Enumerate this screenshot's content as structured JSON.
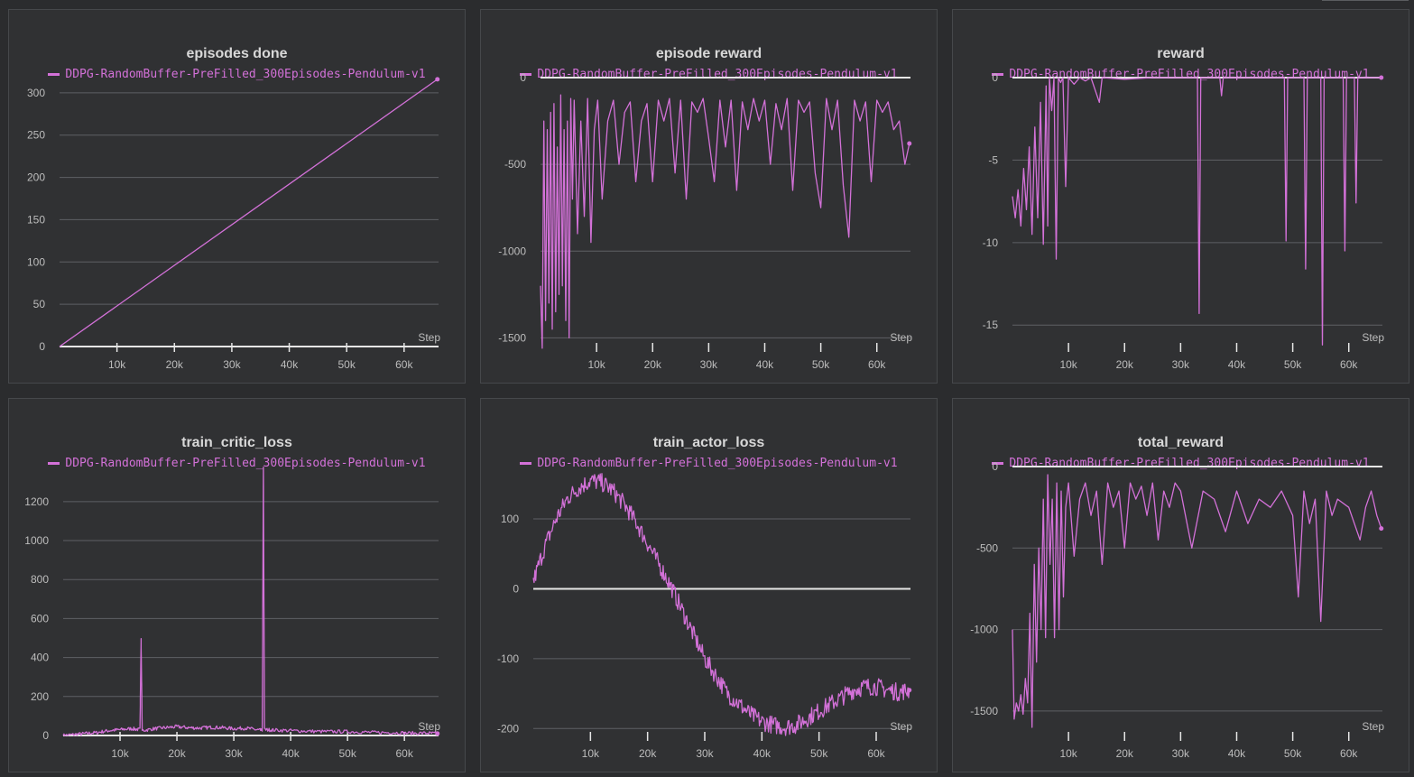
{
  "colors": {
    "background": "#2b2c2e",
    "panel": "#303133",
    "grid": "#5e6064",
    "axis": "#e6e6e6",
    "tick_text": "#bdbdbd",
    "series": "#d371d8"
  },
  "chart_data": [
    {
      "type": "line",
      "title": "episodes done",
      "legend": "DDPG-RandomBuffer-PreFilled_300Episodes-Pendulum-v1",
      "xlabel": "Step",
      "xlim": [
        0,
        66000
      ],
      "ylim": [
        0,
        318
      ],
      "x_ticks": [
        10000,
        20000,
        30000,
        40000,
        50000,
        60000
      ],
      "x_tick_labels": [
        "10k",
        "20k",
        "30k",
        "40k",
        "50k",
        "60k"
      ],
      "y_ticks": [
        0,
        50,
        100,
        150,
        200,
        250,
        300
      ],
      "y_tick_labels": [
        "0",
        "50",
        "100",
        "150",
        "200",
        "250",
        "300"
      ],
      "baseline": 0,
      "series": [
        {
          "name": "DDPG-RandomBuffer-PreFilled_300Episodes-Pendulum-v1",
          "x": [
            0,
            65800
          ],
          "y": [
            0,
            316
          ]
        }
      ]
    },
    {
      "type": "line",
      "title": "episode reward",
      "legend": "DDPG-RandomBuffer-PreFilled_300Episodes-Pendulum-v1",
      "xlabel": "Step",
      "xlim": [
        0,
        66000
      ],
      "ylim": [
        -1550,
        0
      ],
      "x_ticks": [
        10000,
        20000,
        30000,
        40000,
        50000,
        60000
      ],
      "x_tick_labels": [
        "10k",
        "20k",
        "30k",
        "40k",
        "50k",
        "60k"
      ],
      "y_ticks": [
        0,
        -500,
        -1000,
        -1500
      ],
      "y_tick_labels": [
        "0",
        "-500",
        "-1000",
        "-1500"
      ],
      "baseline": 0,
      "series": [
        {
          "name": "DDPG-RandomBuffer-PreFilled_300Episodes-Pendulum-v1",
          "x": [
            0,
            300,
            600,
            900,
            1200,
            1500,
            1800,
            2100,
            2400,
            2700,
            3000,
            3300,
            3600,
            3900,
            4200,
            4500,
            4800,
            5100,
            5400,
            5700,
            6000,
            6600,
            7200,
            7800,
            8400,
            9000,
            9600,
            10200,
            11000,
            12000,
            13000,
            14000,
            15000,
            16000,
            17000,
            18000,
            19000,
            20000,
            21000,
            22000,
            23000,
            24000,
            25000,
            26000,
            27000,
            28000,
            29000,
            30000,
            31000,
            32000,
            33000,
            34000,
            35000,
            36000,
            37000,
            38000,
            39000,
            40000,
            41000,
            42000,
            43000,
            44000,
            45000,
            46000,
            47000,
            48000,
            49000,
            50000,
            51000,
            52000,
            53000,
            54000,
            55000,
            56000,
            57000,
            58000,
            59000,
            60000,
            61000,
            62000,
            63000,
            64000,
            65000,
            65800
          ],
          "y": [
            -1200,
            -1560,
            -250,
            -1400,
            -300,
            -1300,
            -200,
            -1450,
            -150,
            -1350,
            -400,
            -1250,
            -100,
            -1200,
            -300,
            -1400,
            -250,
            -1500,
            -120,
            -700,
            -130,
            -900,
            -250,
            -800,
            -120,
            -950,
            -300,
            -130,
            -700,
            -250,
            -130,
            -500,
            -200,
            -140,
            -600,
            -250,
            -150,
            -600,
            -130,
            -250,
            -120,
            -550,
            -130,
            -700,
            -140,
            -200,
            -120,
            -350,
            -600,
            -130,
            -400,
            -130,
            -650,
            -140,
            -300,
            -120,
            -250,
            -130,
            -500,
            -150,
            -300,
            -120,
            -650,
            -130,
            -200,
            -140,
            -550,
            -750,
            -120,
            -300,
            -130,
            -620,
            -920,
            -130,
            -250,
            -140,
            -600,
            -130,
            -200,
            -140,
            -300,
            -250,
            -500,
            -380
          ]
        }
      ]
    },
    {
      "type": "line",
      "title": "reward",
      "legend": "DDPG-RandomBuffer-PreFilled_300Episodes-Pendulum-v1",
      "xlabel": "Step",
      "xlim": [
        0,
        66000
      ],
      "ylim": [
        -16.3,
        0
      ],
      "x_ticks": [
        10000,
        20000,
        30000,
        40000,
        50000,
        60000
      ],
      "x_tick_labels": [
        "10k",
        "20k",
        "30k",
        "40k",
        "50k",
        "60k"
      ],
      "y_ticks": [
        0,
        -5,
        -10,
        -15
      ],
      "y_tick_labels": [
        "0",
        "-5",
        "-10",
        "-15"
      ],
      "baseline": 0,
      "series": [
        {
          "name": "DDPG-RandomBuffer-PreFilled_300Episodes-Pendulum-v1",
          "x": [
            0,
            500,
            1000,
            1500,
            2000,
            2500,
            3000,
            3500,
            4000,
            4500,
            5000,
            5500,
            6000,
            6300,
            6600,
            7000,
            7400,
            7800,
            8200,
            8600,
            9000,
            9500,
            10000,
            11000,
            12000,
            13000,
            14000,
            15500,
            16000,
            20000,
            25000,
            33000,
            33300,
            33600,
            37000,
            37300,
            37600,
            48500,
            48800,
            49100,
            52000,
            52300,
            52600,
            55000,
            55300,
            55600,
            59000,
            59300,
            59600,
            61000,
            61300,
            61600,
            65800
          ],
          "y": [
            -7.2,
            -8.5,
            -6.8,
            -9.0,
            -5.5,
            -8.0,
            -4.2,
            -9.5,
            -3.0,
            -8.5,
            -1.5,
            -10.1,
            -0.5,
            -9.0,
            0,
            -2.0,
            0,
            -11.0,
            0,
            -0.3,
            0,
            -6.6,
            0,
            -0.4,
            0,
            -0.2,
            0,
            -1.5,
            0,
            -0.1,
            0,
            0,
            -14.3,
            0,
            0,
            -1.1,
            0,
            0,
            -9.9,
            0,
            0,
            -11.6,
            0,
            0,
            -16.2,
            0,
            0,
            -10.5,
            0,
            0,
            -7.6,
            0,
            0
          ]
        }
      ]
    },
    {
      "type": "line",
      "title": "train_critic_loss",
      "legend": "DDPG-RandomBuffer-PreFilled_300Episodes-Pendulum-v1",
      "xlabel": "Step",
      "xlim": [
        0,
        66000
      ],
      "ylim": [
        0,
        1380
      ],
      "x_ticks": [
        10000,
        20000,
        30000,
        40000,
        50000,
        60000
      ],
      "x_tick_labels": [
        "10k",
        "20k",
        "30k",
        "40k",
        "50k",
        "60k"
      ],
      "y_ticks": [
        0,
        200,
        400,
        600,
        800,
        1000,
        1200
      ],
      "y_tick_labels": [
        "0",
        "200",
        "400",
        "600",
        "800",
        "1000",
        "1200"
      ],
      "baseline": 0,
      "series": [
        {
          "name": "DDPG-RandomBuffer-PreFilled_300Episodes-Pendulum-v1",
          "x": [
            0,
            2000,
            4000,
            6000,
            8000,
            10000,
            12000,
            13500,
            13700,
            13900,
            16000,
            18000,
            20000,
            22000,
            24000,
            26000,
            28000,
            30000,
            32000,
            34000,
            35000,
            35200,
            35400,
            37000,
            40000,
            43000,
            46000,
            49000,
            52000,
            55000,
            58000,
            61000,
            64000,
            65800
          ],
          "y": [
            0,
            5,
            10,
            15,
            25,
            30,
            35,
            30,
            490,
            25,
            35,
            40,
            45,
            40,
            38,
            42,
            40,
            35,
            38,
            30,
            25,
            1375,
            30,
            28,
            25,
            22,
            20,
            20,
            18,
            15,
            15,
            12,
            12,
            10
          ]
        }
      ]
    },
    {
      "type": "line",
      "title": "train_actor_loss",
      "legend": "DDPG-RandomBuffer-PreFilled_300Episodes-Pendulum-v1",
      "xlabel": "Step",
      "xlim": [
        0,
        66000
      ],
      "ylim": [
        -210,
        175
      ],
      "x_ticks": [
        10000,
        20000,
        30000,
        40000,
        50000,
        60000
      ],
      "x_tick_labels": [
        "10k",
        "20k",
        "30k",
        "40k",
        "50k",
        "60k"
      ],
      "y_ticks": [
        100,
        0,
        -100,
        -200
      ],
      "y_tick_labels": [
        "100",
        "0",
        "-100",
        "-200"
      ],
      "baseline": 0,
      "series": [
        {
          "name": "DDPG-RandomBuffer-PreFilled_300Episodes-Pendulum-v1",
          "x": [
            0,
            2000,
            4000,
            6000,
            8000,
            10000,
            12000,
            14000,
            16000,
            18000,
            20000,
            22000,
            24000,
            26000,
            28000,
            30000,
            32000,
            34000,
            36000,
            38000,
            40000,
            42000,
            44000,
            46000,
            48000,
            50000,
            52000,
            54000,
            56000,
            58000,
            60000,
            62000,
            64000,
            65800
          ],
          "y": [
            10,
            60,
            100,
            130,
            145,
            155,
            152,
            140,
            120,
            95,
            65,
            35,
            5,
            -30,
            -65,
            -100,
            -125,
            -150,
            -165,
            -180,
            -190,
            -195,
            -198,
            -195,
            -185,
            -175,
            -165,
            -155,
            -145,
            -140,
            -140,
            -145,
            -148,
            -145
          ]
        }
      ]
    },
    {
      "type": "line",
      "title": "total_reward",
      "legend": "DDPG-RandomBuffer-PreFilled_300Episodes-Pendulum-v1",
      "xlabel": "Step",
      "xlim": [
        0,
        66000
      ],
      "ylim": [
        -1650,
        0
      ],
      "x_ticks": [
        10000,
        20000,
        30000,
        40000,
        50000,
        60000
      ],
      "x_tick_labels": [
        "10k",
        "20k",
        "30k",
        "40k",
        "50k",
        "60k"
      ],
      "y_ticks": [
        0,
        -500,
        -1000,
        -1500
      ],
      "y_tick_labels": [
        "0",
        "-500",
        "-1000",
        "-1500"
      ],
      "baseline": 0,
      "series": [
        {
          "name": "DDPG-RandomBuffer-PreFilled_300Episodes-Pendulum-v1",
          "x": [
            0,
            300,
            700,
            1100,
            1500,
            1900,
            2300,
            2700,
            3100,
            3500,
            3900,
            4300,
            4700,
            5100,
            5500,
            5900,
            6300,
            6700,
            7100,
            7500,
            7900,
            8300,
            8700,
            9100,
            9500,
            10000,
            11000,
            12000,
            13000,
            14000,
            15000,
            16000,
            17000,
            18000,
            19000,
            20000,
            21000,
            22000,
            23000,
            24000,
            25000,
            26000,
            27000,
            28000,
            29000,
            30000,
            32000,
            34000,
            36000,
            38000,
            40000,
            42000,
            44000,
            46000,
            48000,
            50000,
            51000,
            52000,
            53000,
            54000,
            55000,
            56000,
            57000,
            58000,
            60000,
            62000,
            63000,
            64000,
            65000,
            65800
          ],
          "y": [
            -1000,
            -1550,
            -1450,
            -1500,
            -1400,
            -1520,
            -1300,
            -1450,
            -900,
            -1600,
            -600,
            -1200,
            -500,
            -1000,
            -200,
            -1050,
            -50,
            -600,
            -200,
            -1050,
            -100,
            -1000,
            -150,
            -800,
            -250,
            -100,
            -550,
            -200,
            -100,
            -300,
            -150,
            -600,
            -100,
            -250,
            -150,
            -500,
            -100,
            -200,
            -120,
            -300,
            -100,
            -450,
            -150,
            -250,
            -100,
            -150,
            -500,
            -150,
            -200,
            -400,
            -150,
            -350,
            -200,
            -250,
            -150,
            -300,
            -800,
            -150,
            -350,
            -200,
            -950,
            -150,
            -300,
            -200,
            -250,
            -450,
            -250,
            -150,
            -300,
            -380
          ]
        }
      ]
    }
  ]
}
